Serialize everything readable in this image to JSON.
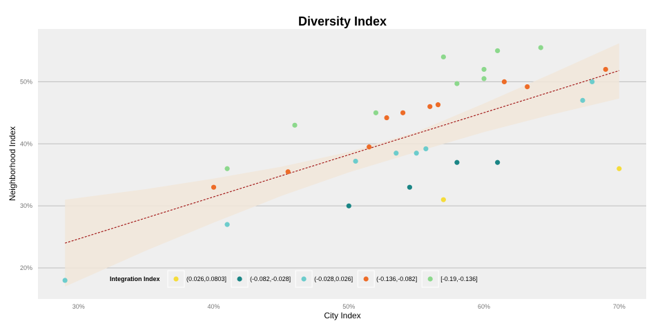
{
  "chart_data": {
    "type": "scatter",
    "title": "Diversity Index",
    "xlabel": "City Index",
    "ylabel": "Neighborhood Index",
    "xlim": [
      27.0,
      72.0
    ],
    "ylim": [
      15.0,
      58.5
    ],
    "x_ticks": [
      30,
      40,
      50,
      60,
      70
    ],
    "x_tick_labels": [
      "30%",
      "40%",
      "50%",
      "60%",
      "70%"
    ],
    "y_ticks": [
      20,
      30,
      40,
      50
    ],
    "y_tick_labels": [
      "20%",
      "30%",
      "40%",
      "50%"
    ],
    "grid": "horizontal",
    "legend_title": "Integration Index",
    "legend_position": "bottom-left-inside",
    "series": [
      {
        "name": "(0.026,0.0803]",
        "color": "#f5dc3a",
        "points": [
          [
            57.0,
            31.0
          ],
          [
            70.0,
            36.0
          ]
        ]
      },
      {
        "name": "(-0.082,-0.028]",
        "color": "#1a8585",
        "points": [
          [
            50.0,
            30.0
          ],
          [
            54.5,
            33.0
          ],
          [
            58.0,
            37.0
          ],
          [
            61.0,
            37.0
          ]
        ]
      },
      {
        "name": "(-0.028,0.026]",
        "color": "#6ccccc",
        "points": [
          [
            29.0,
            18.0
          ],
          [
            41.0,
            27.0
          ],
          [
            50.5,
            37.2
          ],
          [
            53.5,
            38.5
          ],
          [
            55.0,
            38.5
          ],
          [
            55.7,
            39.2
          ],
          [
            67.3,
            47.0
          ],
          [
            68.0,
            50.0
          ]
        ]
      },
      {
        "name": "(-0.136,-0.082]",
        "color": "#ed6c28",
        "points": [
          [
            40.0,
            33.0
          ],
          [
            45.5,
            35.5
          ],
          [
            51.5,
            39.5
          ],
          [
            52.8,
            44.2
          ],
          [
            54.0,
            45.0
          ],
          [
            56.0,
            46.0
          ],
          [
            56.6,
            46.3
          ],
          [
            61.5,
            50.0
          ],
          [
            63.2,
            49.2
          ],
          [
            69.0,
            52.0
          ]
        ]
      },
      {
        "name": "[-0.19,-0.136]",
        "color": "#8cd88c",
        "points": [
          [
            41.0,
            36.0
          ],
          [
            46.0,
            43.0
          ],
          [
            52.0,
            45.0
          ],
          [
            57.0,
            54.0
          ],
          [
            58.0,
            49.7
          ],
          [
            60.0,
            52.0
          ],
          [
            60.0,
            50.5
          ],
          [
            61.0,
            55.0
          ],
          [
            64.2,
            55.5
          ]
        ]
      }
    ],
    "trend_line": {
      "style": "dashed",
      "color": "#a31a1a",
      "x": [
        29.0,
        70.0
      ],
      "y": [
        24.0,
        51.8
      ]
    },
    "confidence_band": {
      "color": "#f1e6d9",
      "x": [
        29.0,
        35.0,
        40.0,
        45.0,
        50.0,
        55.0,
        60.0,
        65.0,
        70.0
      ],
      "lower": [
        17.0,
        22.8,
        27.3,
        31.6,
        35.4,
        38.7,
        41.9,
        44.7,
        47.3
      ],
      "upper": [
        31.0,
        32.7,
        34.4,
        36.3,
        38.7,
        41.9,
        46.5,
        51.3,
        56.2
      ]
    }
  }
}
